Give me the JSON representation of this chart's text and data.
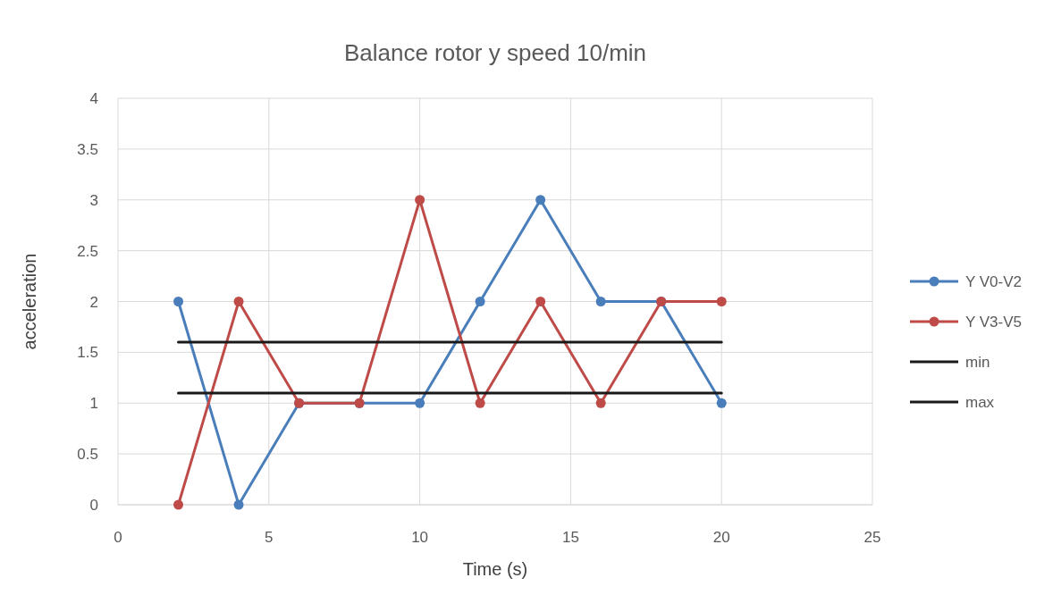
{
  "chart_data": {
    "type": "line",
    "title": "Balance rotor y speed 10/min",
    "xlabel": "Time (s)",
    "ylabel": "acceleration",
    "x": [
      2,
      4,
      6,
      8,
      10,
      12,
      14,
      16,
      18,
      20
    ],
    "series": [
      {
        "name": "Y V0-V2",
        "color": "#4a7ebb",
        "values": [
          2,
          0,
          1,
          1,
          1,
          2,
          3,
          2,
          2,
          1
        ]
      },
      {
        "name": "Y V3-V5",
        "color": "#be4b48",
        "values": [
          0,
          2,
          1,
          1,
          3,
          1,
          2,
          1,
          2,
          2
        ]
      },
      {
        "name": "min",
        "color": "#1a1a1a",
        "values": [
          1.1,
          1.1,
          1.1,
          1.1,
          1.1,
          1.1,
          1.1,
          1.1,
          1.1,
          1.1
        ],
        "marker": "none"
      },
      {
        "name": "max",
        "color": "#1a1a1a",
        "values": [
          1.6,
          1.6,
          1.6,
          1.6,
          1.6,
          1.6,
          1.6,
          1.6,
          1.6,
          1.6
        ],
        "marker": "none"
      }
    ],
    "xlim": [
      0,
      25
    ],
    "xticks": [
      0,
      5,
      10,
      15,
      20,
      25
    ],
    "ylim": [
      0,
      4
    ],
    "yticks": [
      0,
      0.5,
      1,
      1.5,
      2,
      2.5,
      3,
      3.5,
      4
    ],
    "grid": true,
    "legend": "right",
    "marker": "circle",
    "line_style": "solid"
  }
}
